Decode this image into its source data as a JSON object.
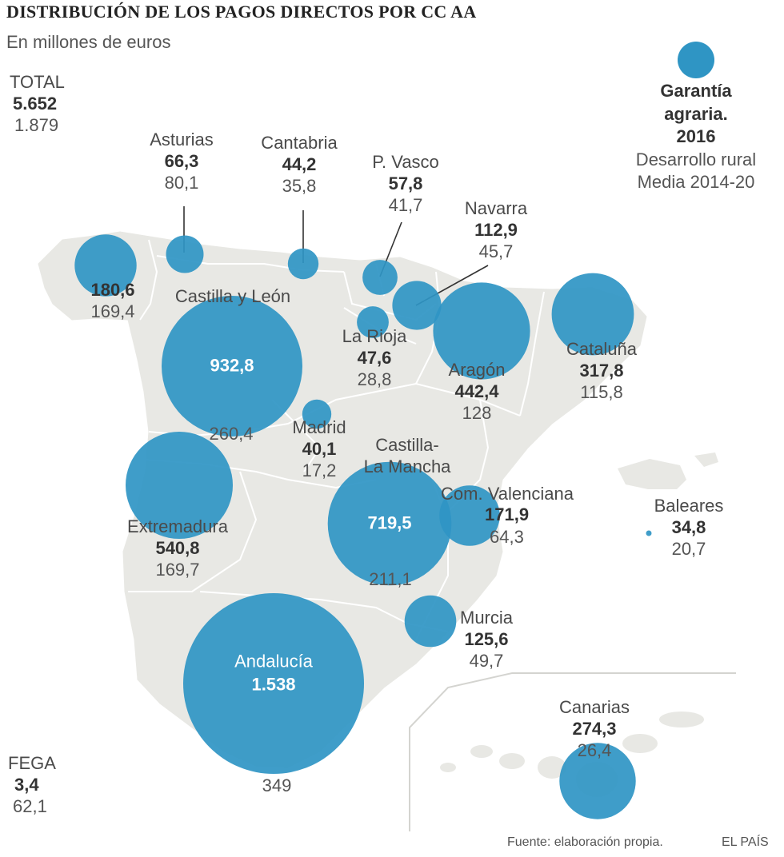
{
  "title": "DISTRIBUCIÓN DE LOS PAGOS DIRECTOS POR CC AA",
  "subtitle": "En millones de euros",
  "colors": {
    "bubble": "#2f95c4",
    "land": "#e8e8e4",
    "border": "#ffffff"
  },
  "legend": {
    "garantia": "Garantía agraria. 2016",
    "garantia_line1": "Garantía",
    "garantia_line2": "agraria.",
    "garantia_line3": "2016",
    "desarrollo_line1": "Desarrollo rural",
    "desarrollo_line2": "Media 2014-20"
  },
  "total": {
    "name": "TOTAL",
    "garantia": "5.652",
    "desarrollo": "1.879"
  },
  "fega": {
    "name": "FEGA",
    "garantia": "3,4",
    "desarrollo": "62,1"
  },
  "regions": {
    "galicia": {
      "name": "",
      "garantia": "180,6",
      "desarrollo": "169,4"
    },
    "asturias": {
      "name": "Asturias",
      "garantia": "66,3",
      "desarrollo": "80,1"
    },
    "cantabria": {
      "name": "Cantabria",
      "garantia": "44,2",
      "desarrollo": "35,8"
    },
    "pvasco": {
      "name": "P. Vasco",
      "garantia": "57,8",
      "desarrollo": "41,7"
    },
    "navarra": {
      "name": "Navarra",
      "garantia": "112,9",
      "desarrollo": "45,7"
    },
    "castilla_leon": {
      "name": "Castilla y León",
      "garantia": "932,8",
      "desarrollo": "260,4"
    },
    "larioja": {
      "name": "La Rioja",
      "garantia": "47,6",
      "desarrollo": "28,8"
    },
    "aragon": {
      "name": "Aragón",
      "garantia": "442,4",
      "desarrollo": "128"
    },
    "cataluna": {
      "name": "Cataluña",
      "garantia": "317,8",
      "desarrollo": "115,8"
    },
    "madrid": {
      "name": "Madrid",
      "garantia": "40,1",
      "desarrollo": "17,2"
    },
    "castilla_mancha": {
      "name_line1": "Castilla-",
      "name_line2": "La Mancha",
      "garantia": "719,5",
      "desarrollo": "211,1"
    },
    "valenciana": {
      "name": "Com. Valenciana",
      "garantia": "171,9",
      "desarrollo": "64,3"
    },
    "baleares": {
      "name": "Baleares",
      "garantia": "34,8",
      "desarrollo": "20,7"
    },
    "extremadura": {
      "name": "Extremadura",
      "garantia": "540,8",
      "desarrollo": "169,7"
    },
    "murcia": {
      "name": "Murcia",
      "garantia": "125,6",
      "desarrollo": "49,7"
    },
    "andalucia": {
      "name": "Andalucía",
      "garantia": "1.538",
      "desarrollo": "349"
    },
    "canarias": {
      "name": "Canarias",
      "garantia": "274,3",
      "desarrollo": "26,4"
    }
  },
  "footer": {
    "source": "Fuente: elaboración propia.",
    "brand": "EL PAÍS"
  }
}
